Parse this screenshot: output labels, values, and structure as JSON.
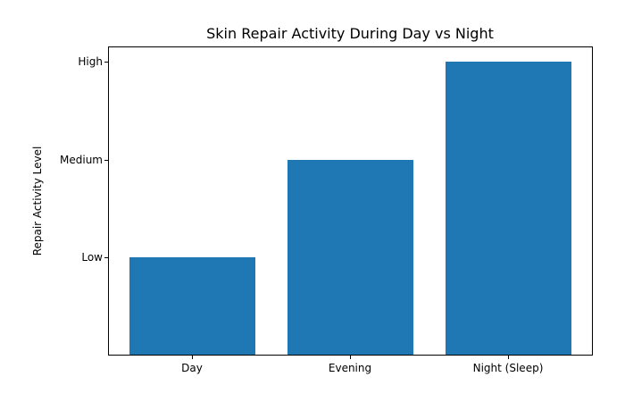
{
  "chart_data": {
    "type": "bar",
    "title": "Skin Repair Activity During Day vs Night",
    "xlabel": "",
    "ylabel": "Repair Activity Level",
    "categories": [
      "Day",
      "Evening",
      "Night (Sleep)"
    ],
    "values": [
      1,
      2,
      3
    ],
    "ytick_values": [
      1,
      2,
      3
    ],
    "ytick_labels": [
      "Low",
      "Medium",
      "High"
    ],
    "ylim": [
      0,
      3.15
    ],
    "bar_color": "#1f77b4",
    "grid": false,
    "legend": null
  }
}
